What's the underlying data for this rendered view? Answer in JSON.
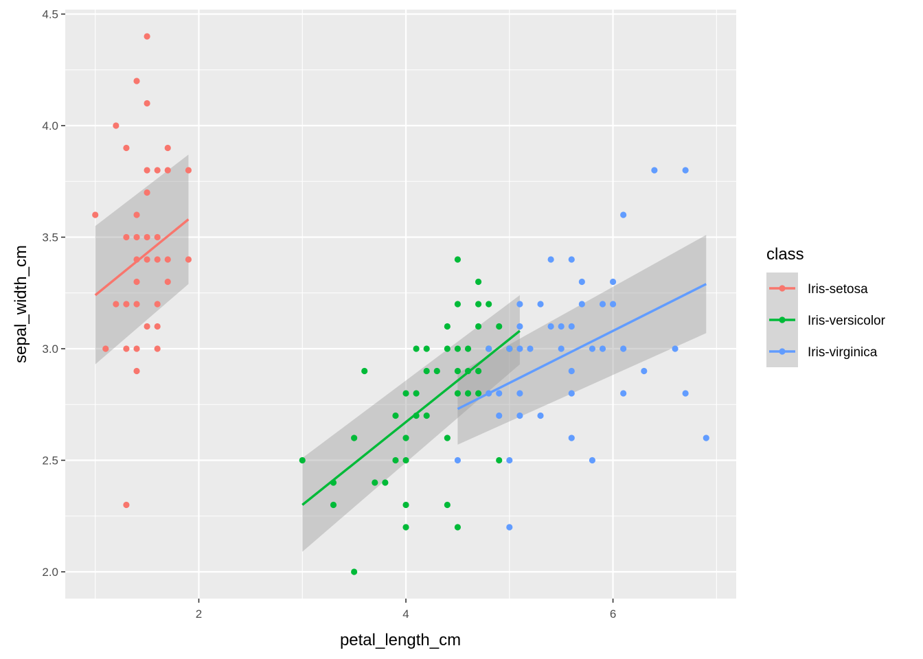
{
  "chart_data": {
    "type": "scatter",
    "xlabel": "petal_length_cm",
    "ylabel": "sepal_width_cm",
    "xlim": [
      0.71,
      7.19
    ],
    "ylim": [
      1.88,
      4.52
    ],
    "x_ticks": [
      2,
      4,
      6
    ],
    "x_tick_labels": [
      "2",
      "4",
      "6"
    ],
    "y_ticks": [
      2.0,
      2.5,
      3.0,
      3.5,
      4.0,
      4.5
    ],
    "y_tick_labels": [
      "2.0",
      "2.5",
      "3.0",
      "3.5",
      "4.0",
      "4.5"
    ],
    "grid": true,
    "legend": {
      "title": "class",
      "position": "right",
      "labels": [
        "Iris-setosa",
        "Iris-versicolor",
        "Iris-virginica"
      ]
    },
    "series": [
      {
        "name": "Iris-setosa",
        "color": "#F8766D",
        "fit": {
          "x": [
            1.0,
            1.9
          ],
          "y": [
            3.24,
            3.58
          ],
          "lower": [
            2.93,
            3.29
          ],
          "upper": [
            3.55,
            3.87
          ]
        },
        "points": [
          [
            1.5,
            4.4
          ],
          [
            1.4,
            4.2
          ],
          [
            1.5,
            4.1
          ],
          [
            1.2,
            4.0
          ],
          [
            1.3,
            3.9
          ],
          [
            1.7,
            3.9
          ],
          [
            1.5,
            3.8
          ],
          [
            1.6,
            3.8
          ],
          [
            1.7,
            3.8
          ],
          [
            1.9,
            3.8
          ],
          [
            1.5,
            3.7
          ],
          [
            1.0,
            3.6
          ],
          [
            1.4,
            3.6
          ],
          [
            1.3,
            3.5
          ],
          [
            1.4,
            3.5
          ],
          [
            1.5,
            3.5
          ],
          [
            1.6,
            3.5
          ],
          [
            1.4,
            3.4
          ],
          [
            1.5,
            3.4
          ],
          [
            1.6,
            3.4
          ],
          [
            1.7,
            3.4
          ],
          [
            1.9,
            3.4
          ],
          [
            1.4,
            3.3
          ],
          [
            1.7,
            3.3
          ],
          [
            1.2,
            3.2
          ],
          [
            1.3,
            3.2
          ],
          [
            1.4,
            3.2
          ],
          [
            1.6,
            3.2
          ],
          [
            1.5,
            3.1
          ],
          [
            1.6,
            3.1
          ],
          [
            1.1,
            3.0
          ],
          [
            1.3,
            3.0
          ],
          [
            1.4,
            3.0
          ],
          [
            1.6,
            3.0
          ],
          [
            1.4,
            2.9
          ],
          [
            1.3,
            2.3
          ]
        ]
      },
      {
        "name": "Iris-versicolor",
        "color": "#00BA38",
        "fit": {
          "x": [
            3.0,
            5.1
          ],
          "y": [
            2.3,
            3.08
          ],
          "lower": [
            2.09,
            2.93
          ],
          "upper": [
            2.51,
            3.24
          ]
        },
        "points": [
          [
            4.5,
            3.4
          ],
          [
            4.7,
            3.3
          ],
          [
            4.5,
            3.2
          ],
          [
            4.7,
            3.2
          ],
          [
            4.8,
            3.2
          ],
          [
            4.4,
            3.1
          ],
          [
            4.7,
            3.1
          ],
          [
            4.9,
            3.1
          ],
          [
            4.1,
            3.0
          ],
          [
            4.2,
            3.0
          ],
          [
            4.4,
            3.0
          ],
          [
            4.5,
            3.0
          ],
          [
            4.6,
            3.0
          ],
          [
            4.8,
            3.0
          ],
          [
            5.0,
            3.0
          ],
          [
            3.6,
            2.9
          ],
          [
            4.2,
            2.9
          ],
          [
            4.3,
            2.9
          ],
          [
            4.5,
            2.9
          ],
          [
            4.6,
            2.9
          ],
          [
            4.7,
            2.9
          ],
          [
            4.0,
            2.8
          ],
          [
            4.1,
            2.8
          ],
          [
            4.5,
            2.8
          ],
          [
            4.6,
            2.8
          ],
          [
            4.7,
            2.8
          ],
          [
            3.9,
            2.7
          ],
          [
            4.1,
            2.7
          ],
          [
            4.2,
            2.7
          ],
          [
            3.5,
            2.6
          ],
          [
            4.0,
            2.6
          ],
          [
            4.4,
            2.6
          ],
          [
            3.0,
            2.5
          ],
          [
            3.9,
            2.5
          ],
          [
            4.0,
            2.5
          ],
          [
            4.9,
            2.5
          ],
          [
            3.3,
            2.4
          ],
          [
            3.7,
            2.4
          ],
          [
            3.8,
            2.4
          ],
          [
            3.3,
            2.3
          ],
          [
            4.0,
            2.3
          ],
          [
            4.4,
            2.3
          ],
          [
            4.0,
            2.2
          ],
          [
            4.5,
            2.2
          ],
          [
            3.5,
            2.0
          ]
        ]
      },
      {
        "name": "Iris-virginica",
        "color": "#619CFF",
        "fit": {
          "x": [
            4.5,
            6.9
          ],
          "y": [
            2.73,
            3.29
          ],
          "lower": [
            2.57,
            3.07
          ],
          "upper": [
            2.89,
            3.51
          ]
        },
        "points": [
          [
            6.4,
            3.8
          ],
          [
            6.7,
            3.8
          ],
          [
            6.1,
            3.6
          ],
          [
            5.4,
            3.4
          ],
          [
            5.6,
            3.4
          ],
          [
            5.7,
            3.3
          ],
          [
            6.0,
            3.3
          ],
          [
            5.1,
            3.2
          ],
          [
            5.3,
            3.2
          ],
          [
            5.7,
            3.2
          ],
          [
            5.9,
            3.2
          ],
          [
            6.0,
            3.2
          ],
          [
            5.1,
            3.1
          ],
          [
            5.4,
            3.1
          ],
          [
            5.5,
            3.1
          ],
          [
            5.6,
            3.1
          ],
          [
            4.8,
            3.0
          ],
          [
            5.0,
            3.0
          ],
          [
            5.1,
            3.0
          ],
          [
            5.2,
            3.0
          ],
          [
            5.5,
            3.0
          ],
          [
            5.8,
            3.0
          ],
          [
            5.9,
            3.0
          ],
          [
            6.1,
            3.0
          ],
          [
            6.6,
            3.0
          ],
          [
            5.6,
            2.9
          ],
          [
            6.3,
            2.9
          ],
          [
            4.8,
            2.8
          ],
          [
            4.9,
            2.8
          ],
          [
            5.1,
            2.8
          ],
          [
            5.6,
            2.8
          ],
          [
            6.1,
            2.8
          ],
          [
            6.7,
            2.8
          ],
          [
            4.9,
            2.7
          ],
          [
            5.1,
            2.7
          ],
          [
            5.3,
            2.7
          ],
          [
            5.6,
            2.6
          ],
          [
            6.9,
            2.6
          ],
          [
            4.5,
            2.5
          ],
          [
            5.0,
            2.5
          ],
          [
            5.8,
            2.5
          ],
          [
            5.0,
            2.2
          ]
        ]
      }
    ]
  }
}
